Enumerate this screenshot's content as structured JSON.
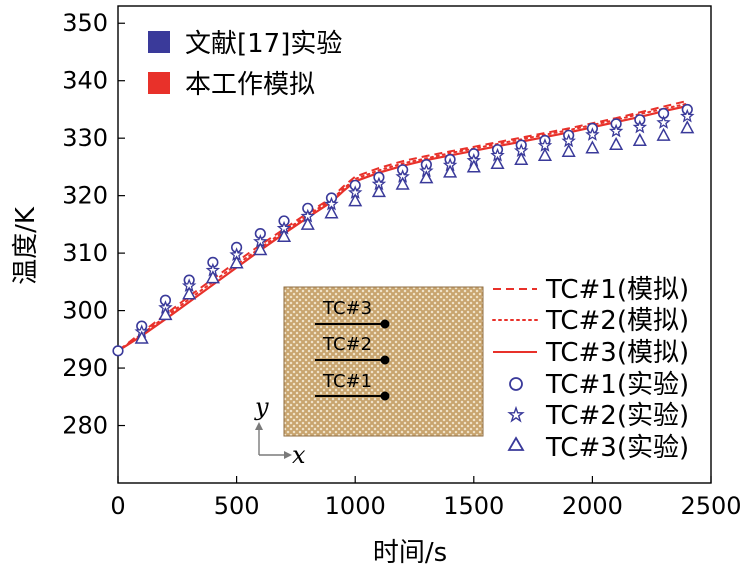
{
  "chart_data": {
    "type": "line",
    "title": "",
    "xlabel": "时间/s",
    "ylabel": "温度/K",
    "xlim": [
      0,
      2500
    ],
    "ylim": [
      270,
      353
    ],
    "x_ticks": [
      0,
      500,
      1000,
      1500,
      2000,
      2500
    ],
    "y_ticks": [
      280,
      290,
      300,
      310,
      320,
      330,
      340,
      350
    ],
    "x_tick_labels": [
      "0",
      "500",
      "1000",
      "1500",
      "2000",
      "2500"
    ],
    "y_tick_labels": [
      "280",
      "290",
      "300",
      "310",
      "320",
      "330",
      "340",
      "350"
    ],
    "top_legend": [
      {
        "label": "文献[17]实验",
        "color": "#3a3a9a"
      },
      {
        "label": "本工作模拟",
        "color": "#e8312a"
      }
    ],
    "series_legend": [
      "TC#1(模拟)",
      "TC#2(模拟)",
      "TC#3(模拟)",
      "TC#1(实验)",
      "TC#2(实验)",
      "TC#3(实验)"
    ],
    "series": [
      {
        "name": "TC#1(模拟)",
        "kind": "line",
        "style": "dashed",
        "color": "#e8312a",
        "x": [
          0,
          100,
          200,
          300,
          400,
          500,
          600,
          700,
          800,
          900,
          950,
          1000,
          1100,
          1200,
          1300,
          1400,
          1500,
          1600,
          1700,
          1800,
          1900,
          2000,
          2100,
          2200,
          2300,
          2400
        ],
        "y": [
          293.0,
          296.2,
          299.3,
          302.5,
          305.5,
          308.5,
          311.4,
          314.2,
          317.0,
          319.6,
          321.6,
          323.3,
          324.8,
          326.0,
          326.9,
          327.7,
          328.5,
          329.3,
          330.1,
          330.9,
          331.7,
          332.6,
          333.5,
          334.5,
          335.5,
          336.5
        ]
      },
      {
        "name": "TC#2(模拟)",
        "kind": "line",
        "style": "dotted",
        "color": "#e8312a",
        "x": [
          0,
          100,
          200,
          300,
          400,
          500,
          600,
          700,
          800,
          900,
          950,
          1000,
          1100,
          1200,
          1300,
          1400,
          1500,
          1600,
          1700,
          1800,
          1900,
          2000,
          2100,
          2200,
          2300,
          2400
        ],
        "y": [
          293.0,
          295.9,
          298.9,
          302.0,
          305.0,
          308.0,
          310.9,
          313.8,
          316.6,
          319.3,
          321.2,
          322.9,
          324.4,
          325.6,
          326.5,
          327.4,
          328.2,
          329.0,
          329.8,
          330.6,
          331.4,
          332.3,
          333.2,
          334.2,
          335.1,
          336.0
        ]
      },
      {
        "name": "TC#3(模拟)",
        "kind": "line",
        "style": "solid",
        "color": "#e8312a",
        "x": [
          0,
          100,
          200,
          300,
          400,
          500,
          600,
          700,
          800,
          900,
          950,
          1000,
          1100,
          1200,
          1300,
          1400,
          1500,
          1600,
          1700,
          1800,
          1900,
          2000,
          2100,
          2200,
          2300,
          2400
        ],
        "y": [
          293.0,
          295.6,
          298.5,
          301.5,
          304.5,
          307.5,
          310.5,
          313.4,
          316.2,
          318.9,
          320.8,
          322.5,
          324.0,
          325.2,
          326.2,
          327.0,
          327.8,
          328.6,
          329.4,
          330.2,
          331.0,
          331.9,
          332.8,
          333.7,
          334.7,
          335.6
        ]
      },
      {
        "name": "TC#1(实验)",
        "kind": "scatter",
        "marker": "circle",
        "color": "#3a3a9a",
        "x": [
          0,
          100,
          200,
          300,
          400,
          500,
          600,
          700,
          800,
          900,
          1000,
          1100,
          1200,
          1300,
          1400,
          1500,
          1600,
          1700,
          1800,
          1900,
          2000,
          2100,
          2200,
          2300,
          2400
        ],
        "y": [
          293.0,
          297.3,
          301.8,
          305.3,
          308.4,
          311.0,
          313.4,
          315.6,
          317.8,
          319.6,
          321.8,
          323.2,
          324.5,
          325.4,
          326.3,
          327.3,
          328.0,
          328.8,
          329.6,
          330.5,
          331.7,
          332.5,
          333.2,
          334.3,
          335.0
        ]
      },
      {
        "name": "TC#2(实验)",
        "kind": "scatter",
        "marker": "star",
        "color": "#3a3a9a",
        "x": [
          100,
          200,
          300,
          400,
          500,
          600,
          700,
          800,
          900,
          1000,
          1100,
          1200,
          1300,
          1400,
          1500,
          1600,
          1700,
          1800,
          1900,
          2000,
          2100,
          2200,
          2300,
          2400
        ],
        "y": [
          296.3,
          300.5,
          304.3,
          307.0,
          309.7,
          312.0,
          314.3,
          316.4,
          318.5,
          320.5,
          322.0,
          323.3,
          324.3,
          325.3,
          326.1,
          327.0,
          327.8,
          328.7,
          329.5,
          330.6,
          331.2,
          331.9,
          332.7,
          333.8
        ]
      },
      {
        "name": "TC#3(实验)",
        "kind": "scatter",
        "marker": "triangle",
        "color": "#3a3a9a",
        "x": [
          100,
          200,
          300,
          400,
          500,
          600,
          700,
          800,
          900,
          1000,
          1100,
          1200,
          1300,
          1400,
          1500,
          1600,
          1700,
          1800,
          1900,
          2000,
          2100,
          2200,
          2300,
          2400
        ],
        "y": [
          295.2,
          299.3,
          302.9,
          305.7,
          308.3,
          310.6,
          312.9,
          315.0,
          317.0,
          319.1,
          320.7,
          322.0,
          323.1,
          324.1,
          325.0,
          325.6,
          326.3,
          327.0,
          327.7,
          328.3,
          328.9,
          329.6,
          330.5,
          331.8
        ]
      }
    ],
    "inset": {
      "labels": [
        "TC#3",
        "TC#2",
        "TC#1"
      ],
      "axis_y": "y",
      "axis_x": "x"
    }
  }
}
